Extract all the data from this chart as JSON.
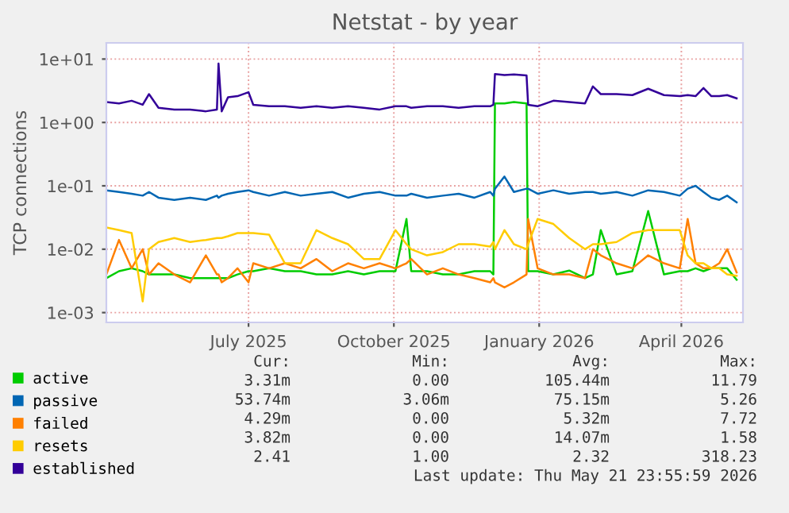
{
  "chart_data": {
    "type": "line",
    "title": "Netstat - by year",
    "ylabel": "TCP connections",
    "x": [
      "2025-04-02",
      "2025-04-10",
      "2025-04-18",
      "2025-04-25",
      "2025-04-29",
      "2025-05-05",
      "2025-05-15",
      "2025-05-25",
      "2025-06-04",
      "2025-06-11",
      "2025-06-12",
      "2025-06-14",
      "2025-06-18",
      "2025-06-24",
      "2025-07-01",
      "2025-07-04",
      "2025-07-14",
      "2025-07-24",
      "2025-08-03",
      "2025-08-13",
      "2025-08-23",
      "2025-09-02",
      "2025-09-12",
      "2025-09-22",
      "2025-10-02",
      "2025-10-09",
      "2025-10-12",
      "2025-10-22",
      "2025-11-01",
      "2025-11-11",
      "2025-11-21",
      "2025-12-01",
      "2025-12-03",
      "2025-12-04",
      "2025-12-10",
      "2025-12-16",
      "2025-12-24",
      "2025-12-25",
      "2025-12-31",
      "2026-01-10",
      "2026-01-20",
      "2026-01-30",
      "2026-02-04",
      "2026-02-09",
      "2026-02-19",
      "2026-03-01",
      "2026-03-11",
      "2026-03-21",
      "2026-03-31",
      "2026-04-05",
      "2026-04-10",
      "2026-04-15",
      "2026-04-20",
      "2026-04-25",
      "2026-04-30",
      "2026-05-06"
    ],
    "series": [
      {
        "name": "active",
        "color": "#00cc00",
        "values": [
          0.0035,
          0.0045,
          0.005,
          0.0045,
          0.004,
          0.004,
          0.004,
          0.0035,
          0.0035,
          0.0035,
          0.0035,
          0.0035,
          0.0035,
          0.004,
          0.0045,
          0.0045,
          0.005,
          0.0045,
          0.0045,
          0.004,
          0.004,
          0.0045,
          0.004,
          0.0045,
          0.0045,
          0.03,
          0.0045,
          0.0045,
          0.004,
          0.004,
          0.0045,
          0.0045,
          0.004,
          2.0,
          2.0,
          2.1,
          2.0,
          0.0045,
          0.0045,
          0.004,
          0.0046,
          0.0035,
          0.004,
          0.02,
          0.004,
          0.0045,
          0.04,
          0.004,
          0.0045,
          0.0045,
          0.005,
          0.0045,
          0.005,
          0.005,
          0.005,
          0.0033
        ]
      },
      {
        "name": "passive",
        "color": "#0066b3",
        "values": [
          0.085,
          0.08,
          0.075,
          0.07,
          0.08,
          0.065,
          0.06,
          0.065,
          0.06,
          0.07,
          0.065,
          0.07,
          0.075,
          0.08,
          0.085,
          0.08,
          0.07,
          0.08,
          0.07,
          0.075,
          0.08,
          0.065,
          0.075,
          0.08,
          0.07,
          0.07,
          0.075,
          0.065,
          0.07,
          0.075,
          0.065,
          0.08,
          0.07,
          0.09,
          0.14,
          0.08,
          0.09,
          0.09,
          0.075,
          0.085,
          0.075,
          0.08,
          0.08,
          0.075,
          0.08,
          0.07,
          0.085,
          0.08,
          0.07,
          0.09,
          0.1,
          0.08,
          0.065,
          0.06,
          0.07,
          0.055
        ]
      },
      {
        "name": "failed",
        "color": "#ff8000",
        "values": [
          0.004,
          0.014,
          0.005,
          0.01,
          0.004,
          0.006,
          0.004,
          0.003,
          0.008,
          0.004,
          0.004,
          0.003,
          0.0035,
          0.005,
          0.003,
          0.006,
          0.005,
          0.006,
          0.005,
          0.007,
          0.0045,
          0.006,
          0.005,
          0.006,
          0.005,
          0.006,
          0.007,
          0.004,
          0.005,
          0.004,
          0.0035,
          0.003,
          0.0035,
          0.003,
          0.0025,
          0.003,
          0.004,
          0.03,
          0.005,
          0.004,
          0.004,
          0.0035,
          0.01,
          0.008,
          0.006,
          0.005,
          0.008,
          0.006,
          0.005,
          0.03,
          0.006,
          0.005,
          0.005,
          0.006,
          0.01,
          0.0043
        ]
      },
      {
        "name": "resets",
        "color": "#ffcc00",
        "values": [
          0.022,
          0.02,
          0.018,
          0.0015,
          0.01,
          0.013,
          0.015,
          0.013,
          0.014,
          0.015,
          0.015,
          0.015,
          0.016,
          0.018,
          0.018,
          0.018,
          0.017,
          0.006,
          0.006,
          0.02,
          0.015,
          0.012,
          0.007,
          0.007,
          0.02,
          0.012,
          0.01,
          0.008,
          0.009,
          0.012,
          0.012,
          0.011,
          0.013,
          0.01,
          0.02,
          0.012,
          0.01,
          0.012,
          0.03,
          0.025,
          0.015,
          0.01,
          0.012,
          0.012,
          0.013,
          0.018,
          0.02,
          0.02,
          0.02,
          0.008,
          0.006,
          0.006,
          0.005,
          0.005,
          0.004,
          0.0038
        ]
      },
      {
        "name": "established",
        "color": "#330099",
        "values": [
          2.1,
          2.0,
          2.2,
          1.9,
          2.8,
          1.7,
          1.6,
          1.6,
          1.5,
          1.6,
          8.5,
          1.5,
          2.5,
          2.6,
          3.0,
          1.9,
          1.8,
          1.8,
          1.7,
          1.8,
          1.7,
          1.8,
          1.7,
          1.6,
          1.8,
          1.8,
          1.7,
          1.8,
          1.8,
          1.7,
          1.8,
          1.8,
          1.9,
          5.8,
          5.6,
          5.7,
          5.5,
          1.9,
          1.8,
          2.2,
          2.1,
          2.0,
          3.7,
          2.8,
          2.8,
          2.7,
          3.4,
          2.7,
          2.6,
          2.7,
          2.6,
          3.5,
          2.6,
          2.6,
          2.7,
          2.4
        ]
      }
    ],
    "log": "y",
    "ylim": [
      0.0007,
      18
    ],
    "yticks": [
      {
        "value": 0.001,
        "label": "1e-03"
      },
      {
        "value": 0.01,
        "label": "1e-02"
      },
      {
        "value": 0.1,
        "label": "1e-01"
      },
      {
        "value": 1,
        "label": "1e+00"
      },
      {
        "value": 10,
        "label": "1e+01"
      }
    ],
    "xlim": [
      "2025-04-02",
      "2026-05-10"
    ],
    "xticks": [
      {
        "value": "2025-07-01",
        "label": "July 2025"
      },
      {
        "value": "2025-10-01",
        "label": "October 2025"
      },
      {
        "value": "2026-01-01",
        "label": "January 2026"
      },
      {
        "value": "2026-04-01",
        "label": "April 2026"
      }
    ],
    "grid": true,
    "legend": "bottom",
    "marker": "none",
    "line_style": "solid",
    "annotations": [
      "Cur:",
      "Min:",
      "Avg:",
      "Max:",
      "3.31m",
      "0.00",
      "105.44m",
      "11.79",
      "53.74m",
      "3.06m",
      "75.15m",
      "5.26",
      "4.29m",
      "0.00",
      "5.32m",
      "7.72",
      "3.82m",
      "0.00",
      "14.07m",
      "1.58",
      "2.41",
      "1.00",
      "2.32",
      "318.23",
      "Last update: Thu May 21 23:55:59 2026"
    ]
  }
}
